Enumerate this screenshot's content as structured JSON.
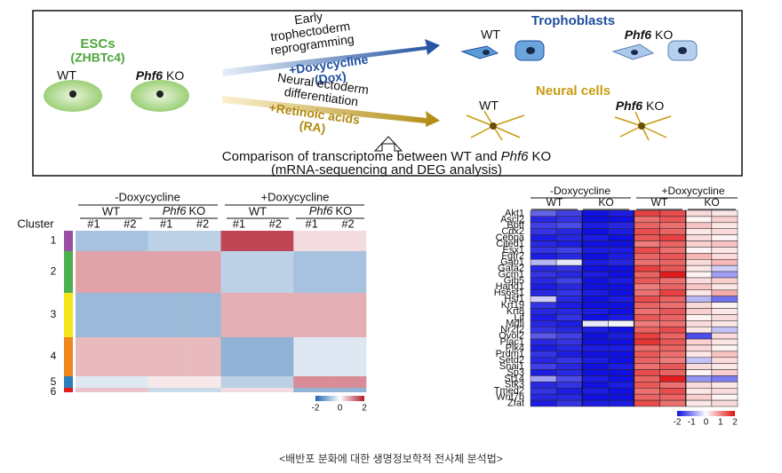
{
  "top": {
    "esc_title": "ESCs",
    "esc_line": "(ZHBTc4)",
    "esc_wt": "WT",
    "esc_ko": {
      "gene": "Phf6",
      "rest": "KO"
    },
    "tropho_arrow": {
      "lines": [
        "Early",
        "trophectoderm",
        "reprogramming"
      ],
      "treatment": [
        "+Doxycycline",
        "(Dox)"
      ]
    },
    "neural_arrow": {
      "lines": [
        "Neural ectoderm",
        "differentiation"
      ],
      "treatment": [
        "+Retinoic acids",
        "(RA)"
      ]
    },
    "tropho_title": "Trophoblasts",
    "tropho_wt": "WT",
    "tropho_ko": {
      "gene": "Phf6",
      "rest": "KO"
    },
    "neural_title": "Neural cells",
    "neural_wt": "WT",
    "neural_ko": {
      "gene": "Phf6",
      "rest": "KO"
    },
    "comparison": {
      "before": "Comparison of transcriptome between WT and",
      "gene": "Phf6",
      "after": "KO"
    },
    "comparison_sub": "(mRNA-sequencing and DEG analysis)"
  },
  "left_heatmap": {
    "groups": [
      "-Doxycycline",
      "+Doxycycline"
    ],
    "genotypes": [
      "WT",
      {
        "gene": "Phf6",
        "rest": "KO"
      },
      "WT",
      {
        "gene": "Phf6",
        "rest": "KO"
      }
    ],
    "replicates": [
      "#1",
      "#2",
      "#1",
      "#2",
      "#1",
      "#2",
      "#1",
      "#2"
    ],
    "cluster_label": "Cluster",
    "clusters": [
      {
        "name": "1",
        "color": "#9b4fa3",
        "values": [
          -0.8,
          -0.8,
          -0.6,
          -0.6,
          1.6,
          1.6,
          0.3,
          0.3
        ]
      },
      {
        "name": "2",
        "color": "#4caf50",
        "values": [
          0.8,
          0.8,
          0.8,
          0.8,
          -0.6,
          -0.6,
          -0.8,
          -0.8
        ]
      },
      {
        "name": "3",
        "color": "#f5e51b",
        "values": [
          -0.9,
          -0.9,
          -0.9,
          -0.9,
          0.7,
          0.7,
          0.7,
          0.7
        ]
      },
      {
        "name": "4",
        "color": "#f0861e",
        "values": [
          0.6,
          0.6,
          0.6,
          0.6,
          -1,
          -1,
          -0.3,
          -0.3
        ]
      },
      {
        "name": "5",
        "color": "#2c7fb8",
        "values": [
          -0.3,
          -0.3,
          0.2,
          0.2,
          -0.6,
          -0.6,
          1,
          1
        ]
      },
      {
        "name": "6",
        "color": "#e31a1c",
        "values": [
          0.5,
          0.5,
          -0.5,
          -0.5,
          0.3,
          0.3,
          -1,
          -1
        ]
      }
    ],
    "colorbar": {
      "ticks": [
        -2,
        0,
        2
      ],
      "lim": [
        -2,
        2
      ]
    }
  },
  "right_heatmap": {
    "groups": [
      "-Doxycycline",
      "+Doxycycline"
    ],
    "genotypes": [
      "WT",
      "KO",
      "WT",
      "KO"
    ],
    "genes": [
      "Akt1",
      "Ascl2",
      "Bptf",
      "Cdx2",
      "Cebpa",
      "Cited1",
      "Esx1",
      "Fgfr2",
      "Gab1",
      "Gata2",
      "Gcm1",
      "Gjb5",
      "Hand1",
      "Hs6st1",
      "Hsf1",
      "Krt19",
      "Krt8",
      "Lif",
      "Mdfi",
      "Nr2f2",
      "Ovol2",
      "Plac1",
      "Plk4",
      "Prdm1",
      "Setd2",
      "Snai1",
      "Sp3",
      "St14",
      "Stk3",
      "Tmed2",
      "Wnt7b",
      "Zfat"
    ],
    "values": [
      [
        -1.3,
        -1.6,
        -2,
        -1.9,
        1.6,
        1.5,
        0.3,
        0.2
      ],
      [
        -1.8,
        -1.7,
        -2,
        -2,
        1.2,
        1.4,
        0.1,
        0.4
      ],
      [
        -1.6,
        -1.5,
        -1.9,
        -1.8,
        1.3,
        1.2,
        0.5,
        0.2
      ],
      [
        -1.7,
        -1.8,
        -2,
        -1.9,
        1.5,
        1.3,
        0.2,
        0.3
      ],
      [
        -1.9,
        -1.8,
        -1.9,
        -2,
        1.4,
        1.6,
        0.3,
        0.1
      ],
      [
        -1.8,
        -1.9,
        -2,
        -2,
        1.1,
        1.3,
        0.4,
        0.5
      ],
      [
        -1.7,
        -1.6,
        -1.9,
        -1.9,
        1.5,
        1.2,
        0.1,
        0.2
      ],
      [
        -1.9,
        -1.8,
        -2,
        -1.9,
        1.3,
        1.4,
        0.6,
        0.3
      ],
      [
        -0.6,
        -0.2,
        -1.9,
        -1.8,
        1.2,
        1.3,
        0.3,
        0.6
      ],
      [
        -1.8,
        -1.7,
        -2,
        -2,
        1.6,
        1.4,
        0.2,
        -0.4
      ],
      [
        -1.7,
        -1.8,
        -1.9,
        -2,
        1.3,
        1.9,
        0.1,
        -0.8
      ],
      [
        -1.8,
        -1.6,
        -2,
        -1.9,
        1.4,
        1.2,
        0.3,
        0.4
      ],
      [
        -1.9,
        -1.8,
        -2,
        -2,
        1.1,
        1.3,
        0.5,
        0.2
      ],
      [
        -1.8,
        -1.7,
        -1.9,
        -2,
        1.2,
        1.6,
        0.2,
        0.7
      ],
      [
        -0.4,
        -1.8,
        -2,
        -1.9,
        1.5,
        1.3,
        -0.6,
        -1.2
      ],
      [
        -1.7,
        -1.9,
        -2,
        -2,
        1.3,
        1.2,
        0.3,
        0.1
      ],
      [
        -1.8,
        -1.8,
        -1.9,
        -2,
        1.2,
        1.4,
        0.4,
        0.2
      ],
      [
        -1.9,
        -1.7,
        -2,
        -1.9,
        1.4,
        1.3,
        0.1,
        0.3
      ],
      [
        -1.8,
        -1.9,
        -0.2,
        -0.1,
        1.1,
        1.2,
        0.3,
        0.2
      ],
      [
        -1.7,
        -1.8,
        -1.9,
        -2,
        1.3,
        1.5,
        0.2,
        -0.5
      ],
      [
        -1.4,
        -1.6,
        -2,
        -1.9,
        1.6,
        1.3,
        -1.5,
        0.3
      ],
      [
        -1.8,
        -1.7,
        -2,
        -2,
        1.7,
        1.4,
        0.4,
        0.2
      ],
      [
        -1.9,
        -1.8,
        -1.9,
        -1.9,
        1.2,
        1.3,
        0.3,
        0.1
      ],
      [
        -1.7,
        -1.9,
        -2,
        -2,
        1.4,
        1.2,
        0.2,
        0.5
      ],
      [
        -1.8,
        -1.7,
        -1.9,
        -2,
        1.3,
        1.1,
        -0.5,
        0.3
      ],
      [
        -1.6,
        -1.8,
        -2,
        -1.9,
        1.2,
        1.4,
        0.3,
        0.2
      ],
      [
        -1.9,
        -1.8,
        -2,
        -2,
        1.5,
        1.3,
        0.1,
        0.4
      ],
      [
        -0.8,
        -1.5,
        -1.9,
        -2,
        1.3,
        1.9,
        -0.9,
        -1.1
      ],
      [
        -1.8,
        -1.7,
        -2,
        -1.9,
        1.4,
        1.2,
        0.3,
        0.2
      ],
      [
        -1.7,
        -1.9,
        -1.9,
        -2,
        1.2,
        1.5,
        0.2,
        0.3
      ],
      [
        -1.8,
        -1.8,
        -2,
        -2,
        1.3,
        1.3,
        0.4,
        0.1
      ],
      [
        -1.9,
        -1.7,
        -1.9,
        -1.9,
        1.5,
        1.2,
        0.2,
        0.3
      ]
    ],
    "colorbar": {
      "ticks": [
        -2,
        -1,
        0,
        1,
        2
      ],
      "lim": [
        -2,
        2
      ]
    }
  },
  "caption": "<배반포 분화에 대한 생명정보학적 전사체 분석법>"
}
